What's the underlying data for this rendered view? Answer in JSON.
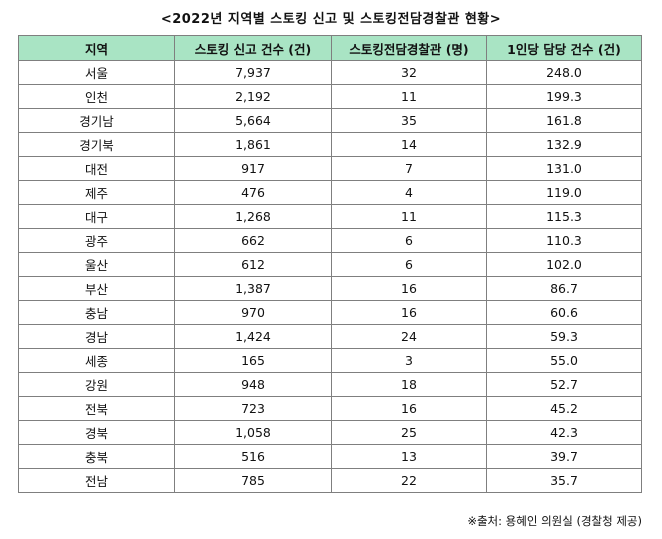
{
  "title": "<2022년 지역별 스토킹 신고 및 스토킹전담경찰관 현황>",
  "table": {
    "headers": [
      "지역",
      "스토킹 신고 건수 (건)",
      "스토킹전담경찰관 (명)",
      "1인당 담당 건수 (건)"
    ],
    "rows": [
      [
        "서울",
        "7,937",
        "32",
        "248.0"
      ],
      [
        "인천",
        "2,192",
        "11",
        "199.3"
      ],
      [
        "경기남",
        "5,664",
        "35",
        "161.8"
      ],
      [
        "경기북",
        "1,861",
        "14",
        "132.9"
      ],
      [
        "대전",
        "917",
        "7",
        "131.0"
      ],
      [
        "제주",
        "476",
        "4",
        "119.0"
      ],
      [
        "대구",
        "1,268",
        "11",
        "115.3"
      ],
      [
        "광주",
        "662",
        "6",
        "110.3"
      ],
      [
        "울산",
        "612",
        "6",
        "102.0"
      ],
      [
        "부산",
        "1,387",
        "16",
        "86.7"
      ],
      [
        "충남",
        "970",
        "16",
        "60.6"
      ],
      [
        "경남",
        "1,424",
        "24",
        "59.3"
      ],
      [
        "세종",
        "165",
        "3",
        "55.0"
      ],
      [
        "강원",
        "948",
        "18",
        "52.7"
      ],
      [
        "전북",
        "723",
        "16",
        "45.2"
      ],
      [
        "경북",
        "1,058",
        "25",
        "42.3"
      ],
      [
        "충북",
        "516",
        "13",
        "39.7"
      ],
      [
        "전남",
        "785",
        "22",
        "35.7"
      ]
    ]
  },
  "source": "※출처: 용혜인 의원실 (경찰청 제공)",
  "colors": {
    "header_background": "#a9e4c4",
    "border": "#7f7f7f"
  }
}
